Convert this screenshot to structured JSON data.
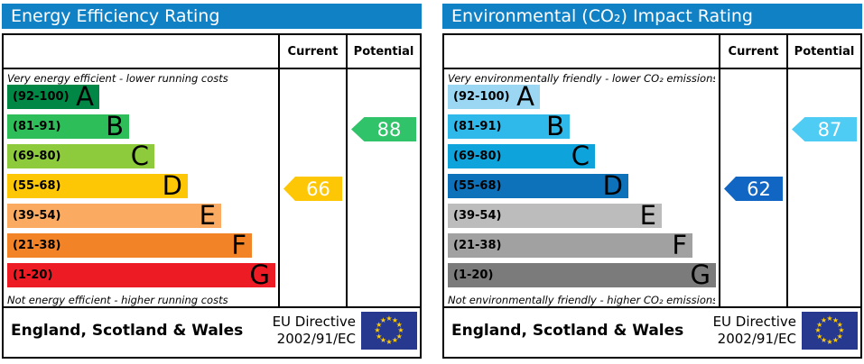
{
  "colors": {
    "header_bar": "#1181c6",
    "eu_flag_blue": "#27388f",
    "eu_star_yellow": "#ffcc00"
  },
  "panels": [
    {
      "title": "Energy Efficiency Rating",
      "col_current": "Current",
      "col_potential": "Potential",
      "top_caption": "Very energy efficient - lower running costs",
      "bottom_caption": "Not energy efficient - higher running costs",
      "bands": [
        {
          "letter": "A",
          "label": "(92-100)",
          "min": 92,
          "max": 100,
          "color": "#008645"
        },
        {
          "letter": "B",
          "label": "(81-91)",
          "min": 81,
          "max": 91,
          "color": "#2dbd59"
        },
        {
          "letter": "C",
          "label": "(69-80)",
          "min": 69,
          "max": 80,
          "color": "#8dca3c"
        },
        {
          "letter": "D",
          "label": "(55-68)",
          "min": 55,
          "max": 68,
          "color": "#fec705"
        },
        {
          "letter": "E",
          "label": "(39-54)",
          "min": 39,
          "max": 54,
          "color": "#faab61"
        },
        {
          "letter": "F",
          "label": "(21-38)",
          "min": 21,
          "max": 38,
          "color": "#f28326"
        },
        {
          "letter": "G",
          "label": "(1-20)",
          "min": 1,
          "max": 20,
          "color": "#ed1c24"
        }
      ],
      "ratings": {
        "current": {
          "value": 66,
          "color": "#fec705"
        },
        "potential": {
          "value": 88,
          "color": "#31c36a"
        }
      },
      "footer": {
        "region": "England, Scotland & Wales",
        "directive_line1": "EU Directive",
        "directive_line2": "2002/91/EC"
      }
    },
    {
      "title": "Environmental (CO₂) Impact Rating",
      "col_current": "Current",
      "col_potential": "Potential",
      "top_caption": "Very environmentally friendly - lower CO₂ emissions",
      "bottom_caption": "Not environmentally friendly - higher CO₂ emissions",
      "bands": [
        {
          "letter": "A",
          "label": "(92-100)",
          "min": 92,
          "max": 100,
          "color": "#9bd7f3"
        },
        {
          "letter": "B",
          "label": "(81-91)",
          "min": 81,
          "max": 91,
          "color": "#2fb8ea"
        },
        {
          "letter": "C",
          "label": "(69-80)",
          "min": 69,
          "max": 80,
          "color": "#0fa3dc"
        },
        {
          "letter": "D",
          "label": "(55-68)",
          "min": 55,
          "max": 68,
          "color": "#0d72b9"
        },
        {
          "letter": "E",
          "label": "(39-54)",
          "min": 39,
          "max": 54,
          "color": "#bcbcbc"
        },
        {
          "letter": "F",
          "label": "(21-38)",
          "min": 21,
          "max": 38,
          "color": "#a1a1a1"
        },
        {
          "letter": "G",
          "label": "(1-20)",
          "min": 1,
          "max": 20,
          "color": "#7b7b7b"
        }
      ],
      "ratings": {
        "current": {
          "value": 62,
          "color": "#1166c4"
        },
        "potential": {
          "value": 87,
          "color": "#4fccf3"
        }
      },
      "footer": {
        "region": "England, Scotland & Wales",
        "directive_line1": "EU Directive",
        "directive_line2": "2002/91/EC"
      }
    }
  ],
  "chart_data": [
    {
      "type": "bar",
      "title": "Energy Efficiency Rating",
      "categories": [
        "A",
        "B",
        "C",
        "D",
        "E",
        "F",
        "G"
      ],
      "band_ranges": [
        "92-100",
        "81-91",
        "69-80",
        "55-68",
        "39-54",
        "21-38",
        "1-20"
      ],
      "band_colors": [
        "#008645",
        "#2dbd59",
        "#8dca3c",
        "#fec705",
        "#faab61",
        "#f28326",
        "#ed1c24"
      ],
      "bar_lengths_relative": [
        0.34,
        0.45,
        0.55,
        0.67,
        0.8,
        0.91,
        1.0
      ],
      "markers": {
        "current": {
          "value": 66,
          "band": "D",
          "column": "Current"
        },
        "potential": {
          "value": 88,
          "band": "B",
          "column": "Potential"
        }
      },
      "annotations": [
        "Very energy efficient - lower running costs",
        "Not energy efficient - higher running costs",
        "England, Scotland & Wales",
        "EU Directive 2002/91/EC"
      ]
    },
    {
      "type": "bar",
      "title": "Environmental (CO₂) Impact Rating",
      "categories": [
        "A",
        "B",
        "C",
        "D",
        "E",
        "F",
        "G"
      ],
      "band_ranges": [
        "92-100",
        "81-91",
        "69-80",
        "55-68",
        "39-54",
        "21-38",
        "1-20"
      ],
      "band_colors": [
        "#9bd7f3",
        "#2fb8ea",
        "#0fa3dc",
        "#0d72b9",
        "#bcbcbc",
        "#a1a1a1",
        "#7b7b7b"
      ],
      "bar_lengths_relative": [
        0.34,
        0.45,
        0.55,
        0.67,
        0.8,
        0.91,
        1.0
      ],
      "markers": {
        "current": {
          "value": 62,
          "band": "D",
          "column": "Current"
        },
        "potential": {
          "value": 87,
          "band": "B",
          "column": "Potential"
        }
      },
      "annotations": [
        "Very environmentally friendly - lower CO₂ emissions",
        "Not environmentally friendly - higher CO₂ emissions",
        "England, Scotland & Wales",
        "EU Directive 2002/91/EC"
      ]
    }
  ]
}
